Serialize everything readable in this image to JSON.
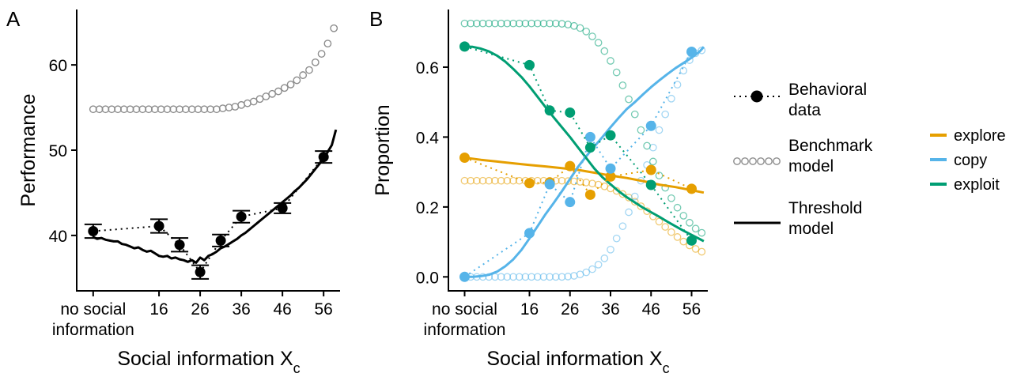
{
  "panels": {
    "a": {
      "letter": "A"
    },
    "b": {
      "letter": "B"
    }
  },
  "legend": {
    "behavioral": [
      "Behavioral",
      "data"
    ],
    "benchmark": [
      "Benchmark",
      "model"
    ],
    "threshold": [
      "Threshold",
      "model"
    ],
    "strategy": [
      {
        "label": "explore",
        "color": "#E69F00"
      },
      {
        "label": "copy",
        "color": "#56B4E9"
      },
      {
        "label": "exploit",
        "color": "#009E73"
      }
    ]
  },
  "chart_data": [
    {
      "type": "line",
      "panel": "A",
      "title": "",
      "xlabel": "Social information X",
      "xlabel_subscript": "c",
      "ylabel": "Performance",
      "xlim": [
        -4,
        60
      ],
      "ylim": [
        33.5,
        66.5
      ],
      "xticks": [
        {
          "value": 0,
          "label": [
            "no social",
            "information"
          ]
        },
        {
          "value": 16,
          "label": [
            "16"
          ]
        },
        {
          "value": 26,
          "label": [
            "26"
          ]
        },
        {
          "value": 36,
          "label": [
            "36"
          ]
        },
        {
          "value": 46,
          "label": [
            "46"
          ]
        },
        {
          "value": 56,
          "label": [
            "56"
          ]
        }
      ],
      "yticks": [
        40,
        50,
        60
      ],
      "behavioral": {
        "x": [
          0,
          16,
          21,
          26,
          31,
          36,
          46,
          56
        ],
        "y": [
          40.5,
          41.1,
          38.9,
          35.7,
          39.4,
          42.2,
          43.2,
          49.2
        ],
        "err": [
          0.8,
          0.8,
          0.8,
          0.8,
          0.7,
          0.7,
          0.6,
          0.7
        ]
      },
      "benchmark": {
        "x": [
          0,
          1.5,
          3,
          4.5,
          6,
          7.5,
          9,
          10.5,
          12,
          13.5,
          15,
          16.5,
          18,
          19.5,
          21,
          22.5,
          24,
          25.5,
          27,
          28.5,
          30,
          31.5,
          33,
          34.5,
          36,
          37.5,
          39,
          40.5,
          42,
          43.5,
          45,
          46.5,
          48,
          49.5,
          51,
          52.5,
          54,
          55.5,
          57,
          58.5
        ],
        "y": [
          54.8,
          54.8,
          54.8,
          54.8,
          54.8,
          54.8,
          54.8,
          54.8,
          54.8,
          54.8,
          54.8,
          54.8,
          54.8,
          54.8,
          54.8,
          54.8,
          54.8,
          54.8,
          54.8,
          54.8,
          54.8,
          54.9,
          55.0,
          55.1,
          55.3,
          55.5,
          55.7,
          56.0,
          56.3,
          56.6,
          56.9,
          57.3,
          57.7,
          58.2,
          58.8,
          59.4,
          60.3,
          61.3,
          62.5,
          64.3
        ]
      },
      "threshold": {
        "x": [
          0,
          1,
          2,
          3,
          4,
          5,
          6,
          7,
          8,
          9,
          10,
          11,
          12,
          13,
          14,
          15,
          16,
          17,
          18,
          19,
          20,
          21,
          22,
          23,
          24,
          25,
          26,
          27,
          28,
          29,
          30,
          31,
          32,
          33,
          34,
          35,
          36,
          37,
          38,
          39,
          40,
          41,
          42,
          43,
          44,
          45,
          46,
          47,
          48,
          49,
          50,
          51,
          52,
          53,
          54,
          55,
          56,
          57,
          58,
          59
        ],
        "y": [
          39.8,
          39.6,
          39.7,
          39.5,
          39.4,
          39.3,
          39.3,
          39.0,
          38.9,
          38.7,
          38.5,
          38.6,
          38.3,
          38.1,
          38.2,
          37.9,
          37.6,
          37.5,
          37.6,
          37.3,
          37.4,
          37.2,
          37.1,
          36.9,
          37.1,
          36.8,
          37.4,
          37.1,
          37.6,
          37.8,
          38.1,
          38.5,
          38.7,
          39.0,
          39.3,
          39.6,
          40.0,
          40.3,
          40.7,
          41.1,
          41.5,
          41.9,
          42.3,
          42.7,
          43.1,
          43.5,
          43.9,
          44.3,
          44.7,
          45.2,
          45.6,
          46.1,
          46.6,
          47.2,
          47.8,
          48.4,
          49.0,
          49.8,
          50.6,
          52.4
        ]
      }
    },
    {
      "type": "line",
      "panel": "B",
      "title": "",
      "xlabel": "Social information X",
      "xlabel_subscript": "c",
      "ylabel": "Proportion",
      "xlim": [
        -4,
        60
      ],
      "ylim": [
        -0.04,
        0.765
      ],
      "xticks": [
        {
          "value": 0,
          "label": [
            "no social",
            "information"
          ]
        },
        {
          "value": 16,
          "label": [
            "16"
          ]
        },
        {
          "value": 26,
          "label": [
            "26"
          ]
        },
        {
          "value": 36,
          "label": [
            "36"
          ]
        },
        {
          "value": 46,
          "label": [
            "46"
          ]
        },
        {
          "value": 56,
          "label": [
            "56"
          ]
        }
      ],
      "yticks": [
        "0.0",
        "0.2",
        "0.4",
        "0.6"
      ],
      "series": [
        {
          "name": "explore",
          "color": "#E69F00",
          "behavioral": {
            "x": [
              0,
              16,
              21,
              26,
              31,
              36,
              46,
              56
            ],
            "y": [
              0.341,
              0.268,
              0.27,
              0.317,
              0.235,
              0.287,
              0.306,
              0.252
            ]
          },
          "threshold": {
            "x": [
              0,
              4,
              8,
              12,
              16,
              20,
              24,
              28,
              32,
              36,
              40,
              44,
              48,
              52,
              56,
              59
            ],
            "y": [
              0.341,
              0.335,
              0.33,
              0.325,
              0.32,
              0.316,
              0.311,
              0.306,
              0.298,
              0.29,
              0.283,
              0.274,
              0.264,
              0.257,
              0.248,
              0.241
            ]
          },
          "benchmark": {
            "x": [
              0,
              1.5,
              3,
              4.5,
              6,
              7.5,
              9,
              10.5,
              12,
              13.5,
              15,
              16.5,
              18,
              19.5,
              21,
              22.5,
              24,
              25.5,
              27,
              28.5,
              30,
              31.5,
              33,
              34.5,
              36,
              37.5,
              39,
              40.5,
              42,
              43.5,
              45,
              46.5,
              48,
              49.5,
              51,
              52.5,
              54,
              55.5,
              57,
              58.5
            ],
            "y": [
              0.275,
              0.275,
              0.275,
              0.275,
              0.275,
              0.275,
              0.275,
              0.275,
              0.275,
              0.275,
              0.275,
              0.275,
              0.275,
              0.275,
              0.275,
              0.275,
              0.275,
              0.274,
              0.273,
              0.272,
              0.27,
              0.267,
              0.264,
              0.259,
              0.253,
              0.246,
              0.237,
              0.227,
              0.215,
              0.202,
              0.188,
              0.173,
              0.158,
              0.143,
              0.128,
              0.114,
              0.101,
              0.09,
              0.08,
              0.072
            ]
          }
        },
        {
          "name": "copy",
          "color": "#56B4E9",
          "behavioral": {
            "x": [
              0,
              16,
              21,
              26,
              31,
              36,
              46,
              56
            ],
            "y": [
              0.0,
              0.125,
              0.265,
              0.214,
              0.4,
              0.31,
              0.432,
              0.644
            ]
          },
          "threshold": {
            "x": [
              0,
              2,
              4,
              6,
              8,
              10,
              12,
              14,
              16,
              18,
              20,
              22,
              24,
              26,
              28,
              30,
              32,
              34,
              36,
              38,
              40,
              42,
              44,
              46,
              48,
              50,
              52,
              54,
              56,
              58,
              59
            ],
            "y": [
              0.0,
              0.0,
              0.002,
              0.006,
              0.015,
              0.03,
              0.05,
              0.077,
              0.11,
              0.145,
              0.18,
              0.212,
              0.245,
              0.28,
              0.315,
              0.345,
              0.373,
              0.4,
              0.428,
              0.455,
              0.48,
              0.5,
              0.522,
              0.543,
              0.562,
              0.58,
              0.597,
              0.612,
              0.627,
              0.645,
              0.658
            ]
          },
          "benchmark": {
            "x": [
              0,
              1.5,
              3,
              4.5,
              6,
              7.5,
              9,
              10.5,
              12,
              13.5,
              15,
              16.5,
              18,
              19.5,
              21,
              22.5,
              24,
              25.5,
              27,
              28.5,
              30,
              31.5,
              33,
              34.5,
              36,
              37.5,
              39,
              40.5,
              42,
              43.5,
              45,
              46.5,
              48,
              49.5,
              51,
              52.5,
              54,
              55.5,
              57,
              58.5
            ],
            "y": [
              0.0,
              0.0,
              0.0,
              0.0,
              0.0,
              0.0,
              0.0,
              0.0,
              0.0,
              0.0,
              0.0,
              0.0,
              0.0,
              0.0,
              0.0,
              0.0,
              0.0,
              0.001,
              0.003,
              0.007,
              0.013,
              0.022,
              0.035,
              0.053,
              0.078,
              0.11,
              0.145,
              0.185,
              0.23,
              0.275,
              0.32,
              0.37,
              0.42,
              0.465,
              0.51,
              0.55,
              0.59,
              0.62,
              0.64,
              0.648
            ]
          }
        },
        {
          "name": "exploit",
          "color": "#009E73",
          "behavioral": {
            "x": [
              0,
              16,
              21,
              26,
              31,
              36,
              46,
              56
            ],
            "y": [
              0.659,
              0.606,
              0.476,
              0.47,
              0.37,
              0.405,
              0.263,
              0.104
            ]
          },
          "threshold": {
            "x": [
              0,
              2,
              4,
              6,
              8,
              10,
              12,
              14,
              16,
              18,
              20,
              22,
              24,
              26,
              28,
              30,
              32,
              34,
              36,
              38,
              40,
              42,
              44,
              46,
              48,
              50,
              52,
              54,
              56,
              58,
              59
            ],
            "y": [
              0.659,
              0.658,
              0.653,
              0.645,
              0.633,
              0.616,
              0.595,
              0.572,
              0.545,
              0.515,
              0.485,
              0.456,
              0.428,
              0.4,
              0.37,
              0.34,
              0.31,
              0.285,
              0.265,
              0.245,
              0.228,
              0.213,
              0.198,
              0.185,
              0.172,
              0.158,
              0.145,
              0.132,
              0.12,
              0.108,
              0.102
            ]
          },
          "benchmark": {
            "x": [
              0,
              1.5,
              3,
              4.5,
              6,
              7.5,
              9,
              10.5,
              12,
              13.5,
              15,
              16.5,
              18,
              19.5,
              21,
              22.5,
              24,
              25.5,
              27,
              28.5,
              30,
              31.5,
              33,
              34.5,
              36,
              37.5,
              39,
              40.5,
              42,
              43.5,
              45,
              46.5,
              48,
              49.5,
              51,
              52.5,
              54,
              55.5,
              57,
              58.5
            ],
            "y": [
              0.725,
              0.725,
              0.725,
              0.725,
              0.725,
              0.725,
              0.725,
              0.725,
              0.725,
              0.725,
              0.725,
              0.725,
              0.725,
              0.725,
              0.725,
              0.725,
              0.724,
              0.722,
              0.718,
              0.712,
              0.702,
              0.688,
              0.67,
              0.646,
              0.618,
              0.585,
              0.548,
              0.508,
              0.465,
              0.42,
              0.375,
              0.33,
              0.29,
              0.255,
              0.225,
              0.198,
              0.175,
              0.155,
              0.138,
              0.126
            ]
          }
        }
      ]
    }
  ]
}
